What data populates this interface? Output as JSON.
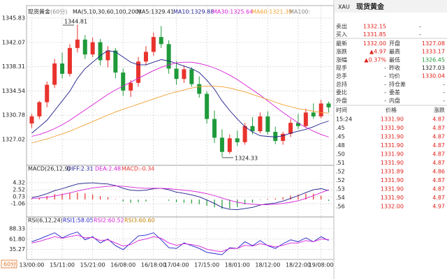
{
  "chart_data": {
    "type": "candlestick",
    "title": "现货黄金",
    "period": "(60分)",
    "indicator": "MA(5,10,30,60,100,200)",
    "ma_labels": [
      "MA5:1329.41",
      "MA10:1329.88",
      "MA30:1325.64",
      "MA60:1321.39",
      "MA100:"
    ],
    "period_label": "60分",
    "categories": [
      "13/00:00",
      null,
      null,
      null,
      "15/11:00",
      null,
      null,
      null,
      "15/21:00",
      null,
      null,
      null,
      "16/08:00",
      null,
      null,
      null,
      "16/18:00",
      null,
      null,
      "17/04:00",
      null,
      null,
      null,
      "17/15:00",
      null,
      null,
      null,
      "18/01:00",
      null,
      null,
      null,
      "18/12:00",
      null,
      null,
      null,
      "18/22:00",
      null,
      null,
      "19/08:00",
      null
    ],
    "open": [
      1329.5,
      1330.6,
      1332.8,
      1335.5,
      1338.8,
      1337.2,
      1341.2,
      1342.5,
      1340.2,
      1342.1,
      1339.3,
      1340.8,
      1337.4,
      1334.6,
      1335.8,
      1339.1,
      1340.6,
      1342.9,
      1341.8,
      1338,
      1336.4,
      1337.9,
      1335.6,
      1334.1,
      1330.2,
      1327.3,
      1325.1,
      1327.2,
      1326.6,
      1329.1,
      1328.3,
      1330.6,
      1328.2,
      1326.8,
      1327.9,
      1329.6,
      1329.1,
      1331.2,
      1330.6,
      1332.6
    ],
    "high": [
      1331,
      1333,
      1336,
      1339.5,
      1340.5,
      1341.8,
      1344.81,
      1343.2,
      1342.8,
      1342.6,
      1341.5,
      1341.2,
      1338,
      1336.2,
      1339.8,
      1341.5,
      1343.6,
      1344.6,
      1342.4,
      1339.2,
      1338.5,
      1338.2,
      1336.8,
      1334.5,
      1331.5,
      1328.6,
      1327.8,
      1328.4,
      1329.6,
      1330.5,
      1331.2,
      1331.4,
      1329,
      1328.2,
      1330.2,
      1331,
      1331.8,
      1332.6,
      1333.17,
      1332.9
    ],
    "low": [
      1328.8,
      1330.2,
      1332,
      1335,
      1336.5,
      1336.8,
      1340.5,
      1339.5,
      1339.8,
      1338.5,
      1338.2,
      1336.5,
      1333.8,
      1333.6,
      1335.2,
      1338.5,
      1340,
      1341.2,
      1337.2,
      1335.5,
      1335.8,
      1335.2,
      1333.5,
      1329.5,
      1326.5,
      1324.33,
      1324.8,
      1326,
      1326.2,
      1327.8,
      1328,
      1327.8,
      1326.3,
      1326.2,
      1327.4,
      1328.6,
      1328.8,
      1330.2,
      1330.3,
      1331.2
    ],
    "close": [
      1330.6,
      1332.8,
      1335.5,
      1338.8,
      1337.2,
      1341.2,
      1342.5,
      1340.2,
      1342.1,
      1339.3,
      1340.8,
      1337.4,
      1334.6,
      1335.8,
      1339.1,
      1340.6,
      1342.9,
      1341.8,
      1338,
      1336.4,
      1337.9,
      1335.6,
      1334.1,
      1330.2,
      1327.3,
      1325.1,
      1327.2,
      1326.6,
      1329.1,
      1328.3,
      1330.6,
      1328.2,
      1326.8,
      1327.9,
      1329.6,
      1329.1,
      1331.2,
      1330.6,
      1332.6,
      1332
    ],
    "up_color": "#e8332c",
    "down_color": "#1f9a3a",
    "ylim": [
      1323.56,
      1347.34
    ],
    "yticks": [
      1345.83,
      1342.07,
      1338.31,
      1334.54,
      1330.78,
      1327.02
    ],
    "grid": true,
    "lines": [
      {
        "color": "#1c1c8c",
        "values": [
          1328,
          1329,
          1330,
          1331.5,
          1333,
          1334.5,
          1336.5,
          1338,
          1339,
          1340,
          1340.8,
          1340.6,
          1339.8,
          1339,
          1338.6,
          1338.6,
          1339,
          1339.4,
          1339.2,
          1338.8,
          1338.4,
          1338,
          1337.4,
          1336.2,
          1334.8,
          1333,
          1331.5,
          1330.2,
          1329,
          1328.2,
          1327.6,
          1327.5,
          1327.4,
          1327.6,
          1328,
          1328.3,
          1328.6,
          1329,
          1329.5,
          1329.88
        ]
      },
      {
        "color": "#d61fd6",
        "values": [
          1327.5,
          1327.8,
          1328.2,
          1328.7,
          1329.3,
          1330,
          1330.8,
          1331.6,
          1332.4,
          1333.2,
          1334,
          1334.7,
          1335.3,
          1335.9,
          1336.5,
          1337.1,
          1337.7,
          1338.2,
          1338.6,
          1338.9,
          1339,
          1339,
          1338.8,
          1338.5,
          1338.1,
          1337.6,
          1337,
          1336.3,
          1335.5,
          1334.7,
          1333.9,
          1333,
          1332.1,
          1331.2,
          1330.4,
          1329.6,
          1328.9,
          1328.3,
          1327.8,
          1327.4
        ]
      },
      {
        "color": "#f0a030",
        "values": [
          1326.5,
          1326.8,
          1327.1,
          1327.5,
          1327.9,
          1328.3,
          1328.8,
          1329.3,
          1329.8,
          1330.3,
          1330.8,
          1331.3,
          1331.7,
          1332.1,
          1332.5,
          1332.9,
          1333.3,
          1333.7,
          1334.1,
          1334.4,
          1334.7,
          1335,
          1335.2,
          1335.3,
          1335.3,
          1335.2,
          1335,
          1334.7,
          1334.4,
          1334,
          1333.6,
          1333.2,
          1332.8,
          1332.4,
          1332.1,
          1331.8,
          1331.6,
          1331.4,
          1331.2,
          1331.1
        ]
      }
    ],
    "annotations": [
      "1344.81",
      "1324.33"
    ],
    "macd": {
      "title": "MACD(26,12,9)",
      "labels": [
        "DIFF:2.31",
        "DEA:2.48",
        "MACD:-0.34"
      ],
      "ylim": [
        -4.28,
        7.72
      ],
      "yticks": [
        4.32,
        2.52,
        0.73,
        -1.06
      ],
      "diff": [
        0.5,
        0.9,
        1.5,
        2.3,
        2.8,
        3.4,
        4.0,
        4.2,
        4.3,
        4.1,
        4.0,
        3.6,
        2.9,
        2.4,
        2.3,
        2.4,
        2.8,
        2.9,
        2.5,
        1.9,
        1.6,
        1.2,
        0.7,
        -0.1,
        -1.0,
        -2.0,
        -2.5,
        -2.6,
        -2.3,
        -2.0,
        -1.4,
        -1.1,
        -0.9,
        -0.4,
        0.3,
        1.0,
        1.8,
        2.5,
        2.8,
        2.31
      ],
      "dea": [
        0.3,
        0.4,
        0.6,
        0.9,
        1.3,
        1.7,
        2.2,
        2.6,
        3.0,
        3.2,
        3.4,
        3.5,
        3.4,
        3.2,
        3.0,
        2.9,
        2.9,
        2.9,
        2.8,
        2.6,
        2.4,
        2.2,
        1.9,
        1.5,
        1.0,
        0.4,
        -0.2,
        -0.7,
        -1.0,
        -1.2,
        -1.3,
        -1.3,
        -1.2,
        -1.0,
        -0.7,
        -0.3,
        0.3,
        1.0,
        1.8,
        2.48
      ],
      "hist": [
        0.2,
        0.5,
        0.9,
        1.4,
        1.5,
        1.7,
        1.8,
        1.6,
        1.3,
        0.9,
        0.6,
        0.1,
        -0.5,
        -0.8,
        -0.7,
        -0.5,
        -0.1,
        0,
        -0.3,
        -0.7,
        -0.8,
        -1.0,
        -1.2,
        -1.6,
        -2.0,
        -2.4,
        -2.3,
        -1.9,
        -1.3,
        -0.8,
        -0.1,
        0.2,
        0.3,
        0.6,
        1.0,
        1.3,
        1.5,
        1.5,
        1.0,
        -0.34
      ],
      "diff_color": "#1c1c8c",
      "dea_color": "#d61fd6"
    },
    "rsi": {
      "title": "RSI(6,12,24)",
      "labels": [
        "RSI1:58.05",
        "RSI2:60.52",
        "RSI3:60.60"
      ],
      "ylim": [
        13.4,
        102.4
      ],
      "yticks": [
        88.33,
        {
          "value": 61.8,
          "label": "61.80"
        },
        35.27
      ],
      "rsi1": [
        55,
        62,
        70,
        78,
        65,
        74,
        80,
        60,
        68,
        52,
        62,
        45,
        35,
        52,
        70,
        72,
        78,
        60,
        40,
        38,
        52,
        45,
        38,
        28,
        25,
        22,
        40,
        38,
        55,
        45,
        58,
        45,
        38,
        50,
        60,
        55,
        65,
        55,
        68,
        58.05
      ],
      "rsi2": [
        52,
        56,
        62,
        68,
        64,
        68,
        72,
        65,
        66,
        58,
        60,
        52,
        44,
        48,
        58,
        62,
        68,
        64,
        52,
        46,
        50,
        48,
        44,
        36,
        32,
        30,
        38,
        38,
        46,
        44,
        50,
        46,
        42,
        46,
        52,
        52,
        58,
        55,
        62,
        60.52
      ],
      "rsi1_color": "#2020c8",
      "rsi2_color": "#d61fd6"
    }
  },
  "quote_panel": {
    "symbol": "XAU",
    "name": "现货黄金",
    "rows": [
      [
        "卖出",
        "1332.15",
        "-"
      ],
      [
        "买入",
        "1331.85",
        "-"
      ],
      [
        "最新",
        "1332.00",
        "开盘",
        "1327.08"
      ],
      [
        "涨跌",
        "▲4.97",
        "最高",
        "1333.17"
      ],
      [
        "涨幅",
        "▲0.37%",
        "最低",
        "1326.45"
      ],
      [
        "现手",
        "-",
        "昨收",
        "1327.03"
      ],
      [
        "总手",
        "-",
        "均价",
        "1330.04"
      ],
      [
        "总持",
        "-",
        "持仓差",
        "-"
      ],
      [
        "委比",
        "-",
        "委差",
        "-"
      ],
      [
        "外盘",
        "-",
        "内盘",
        "-"
      ]
    ],
    "ticks_header": [
      "时间",
      "价格",
      "涨跌"
    ],
    "ticks": [
      [
        "15:24",
        "1331.90",
        "4.87"
      ],
      [
        ".45",
        "1331.90",
        "4.87"
      ],
      [
        ".45",
        "1331.90",
        "4.87"
      ],
      [
        ".48",
        "1331.90",
        "4.87"
      ],
      [
        ".50",
        "1331.90",
        "4.87"
      ],
      [
        ".51",
        "1331.90",
        "4.87"
      ],
      [
        ".52",
        "1331.89",
        "4.86"
      ],
      [
        ".52",
        "1331.90",
        "4.87"
      ],
      [
        ".53",
        "1331.90",
        "4.87"
      ],
      [
        ".54",
        "1331.90",
        "4.87"
      ],
      [
        ".56",
        "1332.00",
        "4.97"
      ]
    ]
  }
}
